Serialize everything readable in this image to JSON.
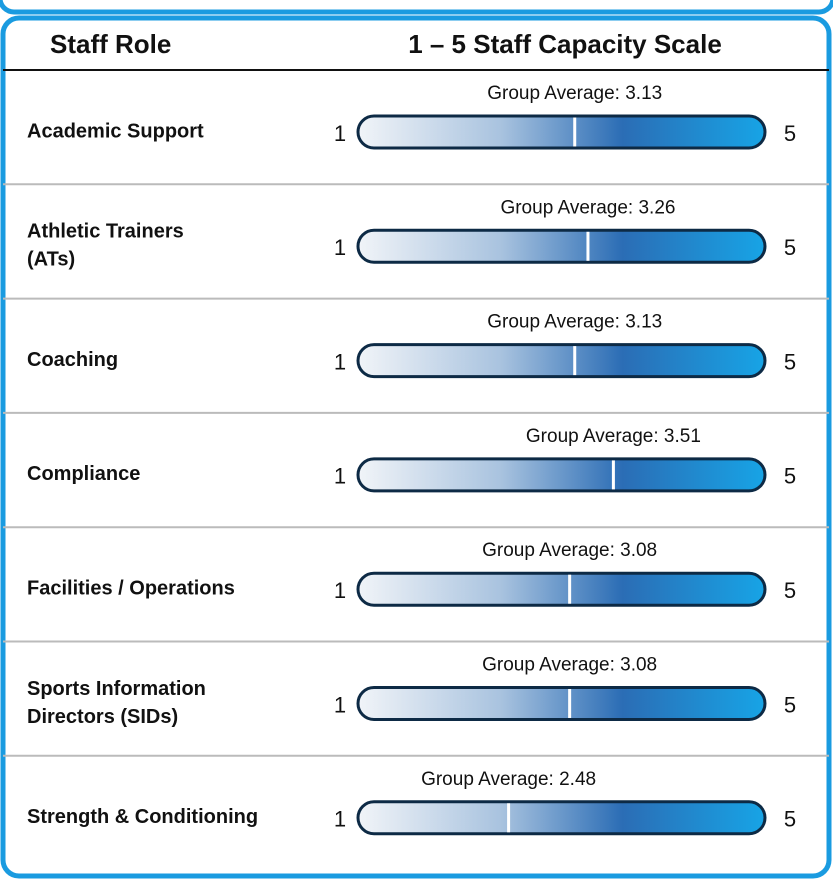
{
  "chart_data": {
    "type": "scale",
    "y_label": "Staff Role",
    "x_label": "1 – 5 Staff Capacity Scale",
    "categories": [
      [
        "Academic Support"
      ],
      [
        "Athletic Trainers",
        "(ATs)"
      ],
      [
        "Coaching"
      ],
      [
        "Compliance"
      ],
      [
        "Facilities / Operations"
      ],
      [
        "Sports Information",
        "Directors (SIDs)"
      ],
      [
        "Strength & Conditioning"
      ]
    ],
    "values": [
      3.13,
      3.26,
      3.13,
      3.51,
      3.08,
      3.08,
      2.48
    ],
    "value_labels": [
      "Group Average: 3.13",
      "Group Average: 3.26",
      "Group Average: 3.13",
      "Group Average: 3.51",
      "Group Average: 3.08",
      "Group Average: 3.08",
      "Group Average: 2.48"
    ],
    "xlim": [
      1,
      5
    ],
    "xticks": [
      1,
      5
    ]
  }
}
